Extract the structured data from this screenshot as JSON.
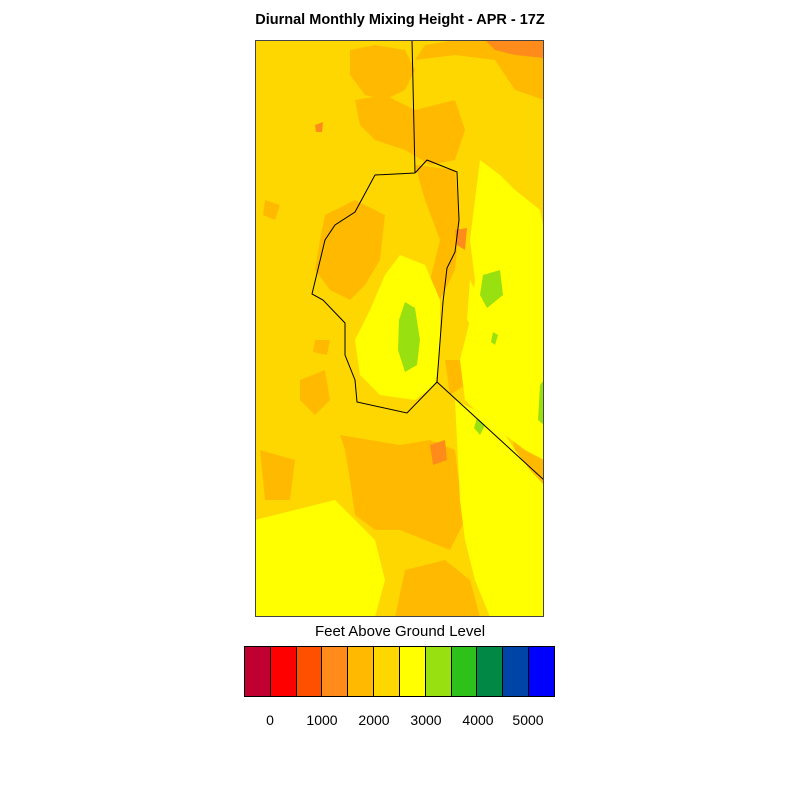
{
  "title": "Diurnal Monthly Mixing Height - APR - 17Z",
  "legend": {
    "label": "Feet Above Ground Level",
    "colors": [
      "#c00030",
      "#ff0000",
      "#ff5000",
      "#ff8c1a",
      "#ffba00",
      "#ffd700",
      "#ffff00",
      "#99e011",
      "#2ec11a",
      "#008844",
      "#0044a8",
      "#0000ff"
    ],
    "tick_labels": [
      "0",
      "1000",
      "2000",
      "3000",
      "4000",
      "5000"
    ]
  },
  "map": {
    "background_color": "#ffd700",
    "boundary_color": "#000000"
  }
}
